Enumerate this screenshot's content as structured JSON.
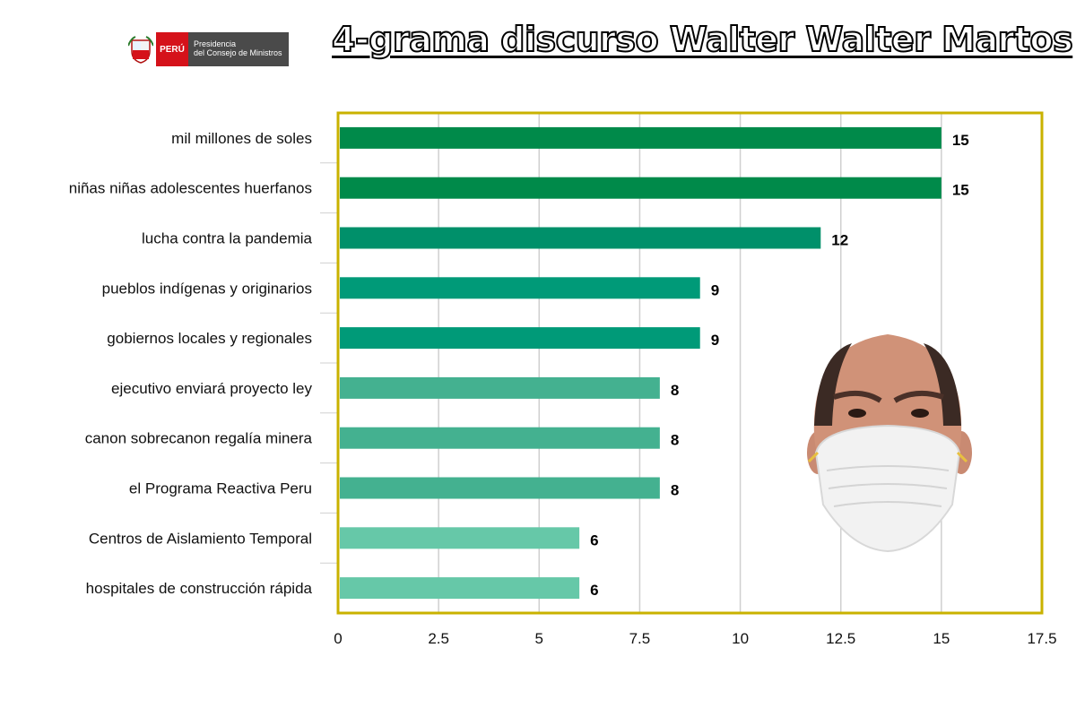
{
  "header": {
    "title": "4-grama discurso Walter Walter Martos",
    "logo_country": "PERÚ",
    "logo_institution": "Presidencia\ndel Consejo de Ministros"
  },
  "chart_data": {
    "type": "bar",
    "orientation": "horizontal",
    "title": "4-grama discurso Walter Walter Martos",
    "categories": [
      "mil millones de soles",
      "niñas niñas adolescentes huerfanos",
      "lucha contra la pandemia",
      "pueblos indígenas y originarios",
      "gobiernos locales y regionales",
      "ejecutivo enviará proyecto ley",
      "canon sobrecanon regalía minera",
      "el Programa Reactiva Peru",
      "Centros de Aislamiento Temporal",
      "hospitales de construcción rápida"
    ],
    "values": [
      15,
      15,
      12,
      9,
      9,
      8,
      8,
      8,
      6,
      6
    ],
    "colors": [
      "#008a4a",
      "#008a4a",
      "#00906a",
      "#009a78",
      "#009a78",
      "#44b190",
      "#44b190",
      "#44b190",
      "#66c8a8",
      "#66c8a8"
    ],
    "xlim": [
      0,
      17.5
    ],
    "xticks": [
      "0",
      "2.5",
      "5",
      "7.5",
      "10",
      "12.5",
      "15",
      "17.5"
    ],
    "xlabel": "",
    "ylabel": "",
    "grid": true,
    "frame_color": "#c9b200",
    "grid_color": "#cfcfcf"
  }
}
